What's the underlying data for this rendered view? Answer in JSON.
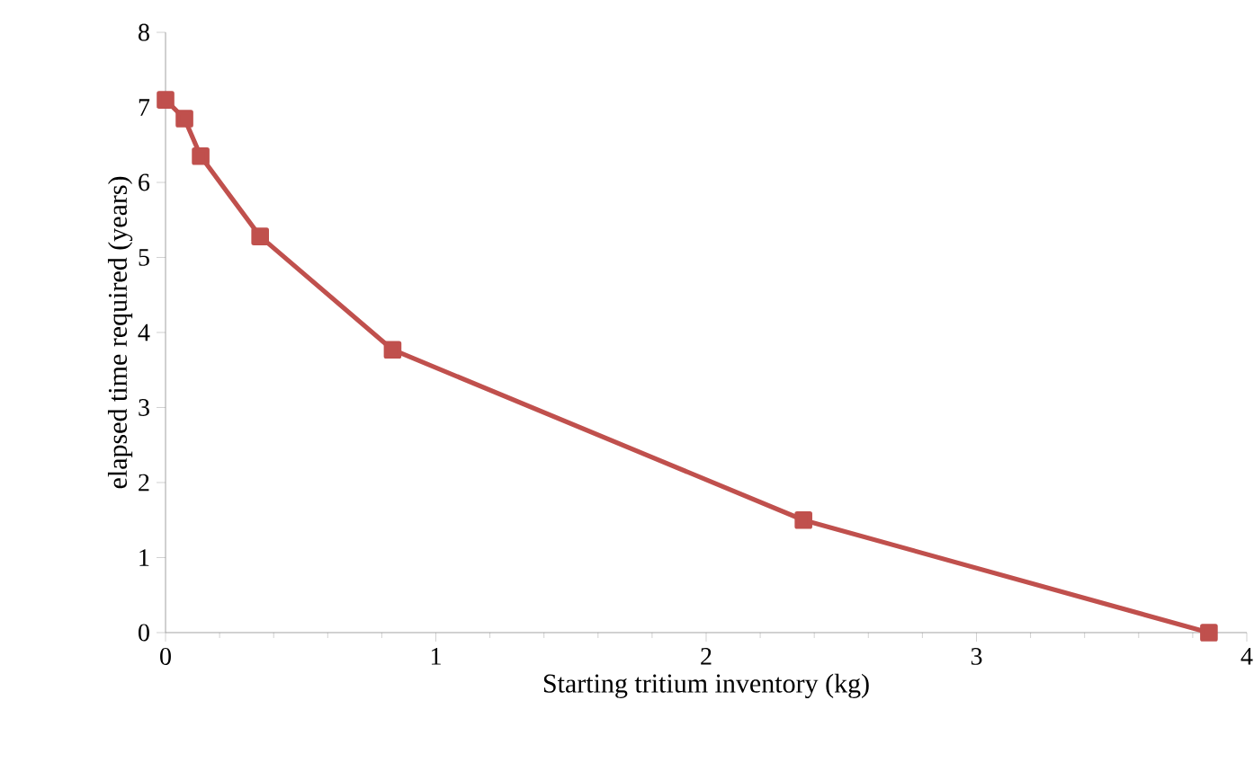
{
  "chart_data": {
    "type": "line",
    "xlabel": "Starting tritium inventory (kg)",
    "ylabel": "elapsed time required (years)",
    "x": [
      0.0,
      0.07,
      0.13,
      0.35,
      0.84,
      2.36,
      3.86
    ],
    "series": [
      {
        "color": "#c0504d",
        "values": [
          7.1,
          6.85,
          6.35,
          5.28,
          3.77,
          1.5,
          0.0
        ]
      }
    ],
    "xlim": [
      0,
      4
    ],
    "ylim": [
      0,
      8
    ],
    "xticks": [
      0,
      1,
      2,
      3,
      4
    ],
    "yticks": [
      0,
      1,
      2,
      3,
      4,
      5,
      6,
      7,
      8
    ],
    "marker": "square",
    "line_style": "solid"
  }
}
